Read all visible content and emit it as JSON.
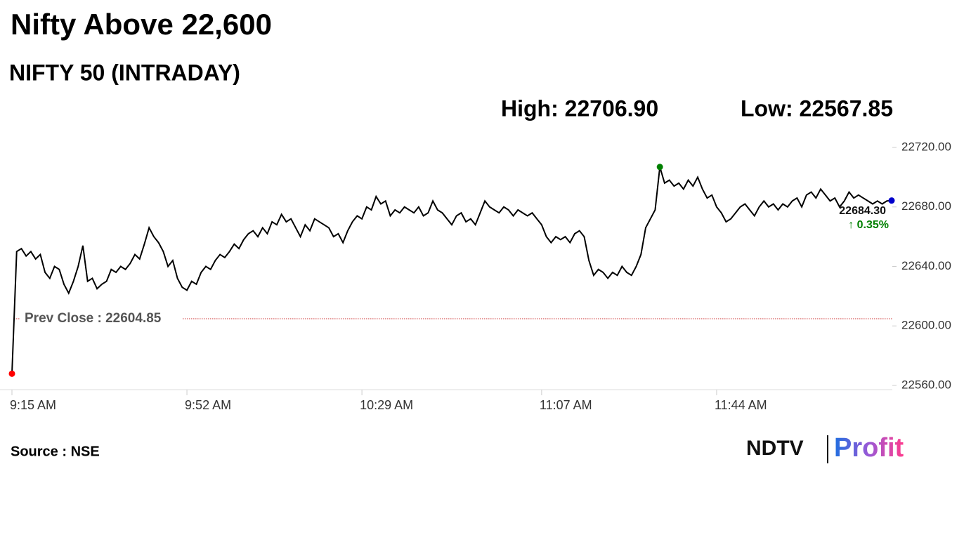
{
  "chart_data": {
    "type": "line",
    "title": "Nifty Above 22,600",
    "subtitle": "NIFTY 50 (INTRADAY)",
    "high_label": "High: 22706.90",
    "low_label": "Low: 22567.85",
    "source": "Source : NSE",
    "brand": [
      "NDTV",
      "Profit"
    ],
    "line_color": "#000000",
    "low_color": "#ff0000",
    "high_color": "#008000",
    "last_color": "#0000cc",
    "change_color": "#008000",
    "prev_close": {
      "value": 22604.85,
      "label": "Prev Close : 22604.85",
      "color": "#cc3333"
    },
    "last_value_label": "22684.30",
    "change_label": "↑ 0.35%",
    "ylim": [
      22560,
      22720
    ],
    "yticks": [
      {
        "value": 22560,
        "label": "22560.00"
      },
      {
        "value": 22600,
        "label": "22600.00"
      },
      {
        "value": 22640,
        "label": "22640.00"
      },
      {
        "value": 22680,
        "label": "22680.00"
      },
      {
        "value": 22720,
        "label": "22720.00"
      }
    ],
    "categories": [
      "9:15 AM",
      null,
      null,
      null,
      null,
      null,
      null,
      null,
      null,
      null,
      null,
      null,
      null,
      null,
      null,
      null,
      null,
      null,
      null,
      null,
      null,
      null,
      null,
      null,
      null,
      null,
      null,
      null,
      null,
      null,
      null,
      null,
      null,
      null,
      null,
      null,
      null,
      "9:52 AM",
      null,
      null,
      null,
      null,
      null,
      null,
      null,
      null,
      null,
      null,
      null,
      null,
      null,
      null,
      null,
      null,
      null,
      null,
      null,
      null,
      null,
      null,
      null,
      null,
      null,
      null,
      null,
      null,
      null,
      null,
      null,
      null,
      null,
      null,
      null,
      null,
      "10:29 AM",
      null,
      null,
      null,
      null,
      null,
      null,
      null,
      null,
      null,
      null,
      null,
      null,
      null,
      null,
      null,
      null,
      null,
      null,
      null,
      null,
      null,
      null,
      null,
      null,
      null,
      null,
      null,
      null,
      null,
      null,
      null,
      null,
      null,
      null,
      null,
      null,
      null,
      "11:07 AM",
      null,
      null,
      null,
      null,
      null,
      null,
      null,
      null,
      null,
      null,
      null,
      null,
      null,
      null,
      null,
      null,
      null,
      null,
      null,
      null,
      null,
      null,
      null,
      null,
      null,
      null,
      null,
      null,
      null,
      null,
      null,
      null,
      null,
      null,
      null,
      null,
      "11:44 AM",
      null,
      null,
      null,
      null,
      null,
      null,
      null,
      null,
      null,
      null,
      null,
      null,
      null,
      null,
      null,
      null,
      null,
      null,
      null,
      null,
      null,
      null,
      null,
      null,
      null,
      null,
      null,
      null,
      null,
      null,
      null,
      null,
      null,
      null,
      null,
      null,
      null
    ],
    "values": [
      22567.85,
      22650,
      22652,
      22647,
      22650,
      22645,
      22648,
      22636,
      22632,
      22640,
      22638,
      22628,
      22622,
      22630,
      22640,
      22654,
      22630,
      22632,
      22625,
      22628,
      22630,
      22638,
      22636,
      22640,
      22638,
      22642,
      22648,
      22645,
      22655,
      22666,
      22660,
      22656,
      22650,
      22640,
      22644,
      22632,
      22626,
      22624,
      22630,
      22628,
      22636,
      22640,
      22638,
      22644,
      22648,
      22646,
      22650,
      22655,
      22652,
      22658,
      22662,
      22664,
      22660,
      22666,
      22662,
      22670,
      22668,
      22675,
      22670,
      22672,
      22666,
      22660,
      22668,
      22664,
      22672,
      22670,
      22668,
      22666,
      22660,
      22662,
      22656,
      22664,
      22670,
      22674,
      22672,
      22680,
      22678,
      22687,
      22682,
      22684,
      22674,
      22678,
      22676,
      22680,
      22678,
      22676,
      22680,
      22674,
      22676,
      22684,
      22678,
      22676,
      22672,
      22668,
      22674,
      22676,
      22670,
      22672,
      22668,
      22676,
      22684,
      22680,
      22678,
      22676,
      22680,
      22678,
      22674,
      22678,
      22676,
      22674,
      22676,
      22672,
      22668,
      22660,
      22656,
      22660,
      22658,
      22660,
      22656,
      22662,
      22664,
      22660,
      22644,
      22634,
      22638,
      22636,
      22632,
      22636,
      22634,
      22640,
      22636,
      22634,
      22640,
      22648,
      22666,
      22672,
      22678,
      22706.9,
      22696,
      22698,
      22694,
      22696,
      22692,
      22698,
      22694,
      22700,
      22692,
      22686,
      22688,
      22680,
      22676,
      22670,
      22672,
      22676,
      22680,
      22682,
      22678,
      22674,
      22680,
      22684,
      22680,
      22682,
      22678,
      22682,
      22680,
      22684,
      22686,
      22680,
      22688,
      22690,
      22686,
      22692,
      22688,
      22684,
      22686,
      22680,
      22684,
      22690,
      22686,
      22688,
      22686,
      22684,
      22682,
      22684,
      22682,
      22684,
      22684.3
    ]
  }
}
